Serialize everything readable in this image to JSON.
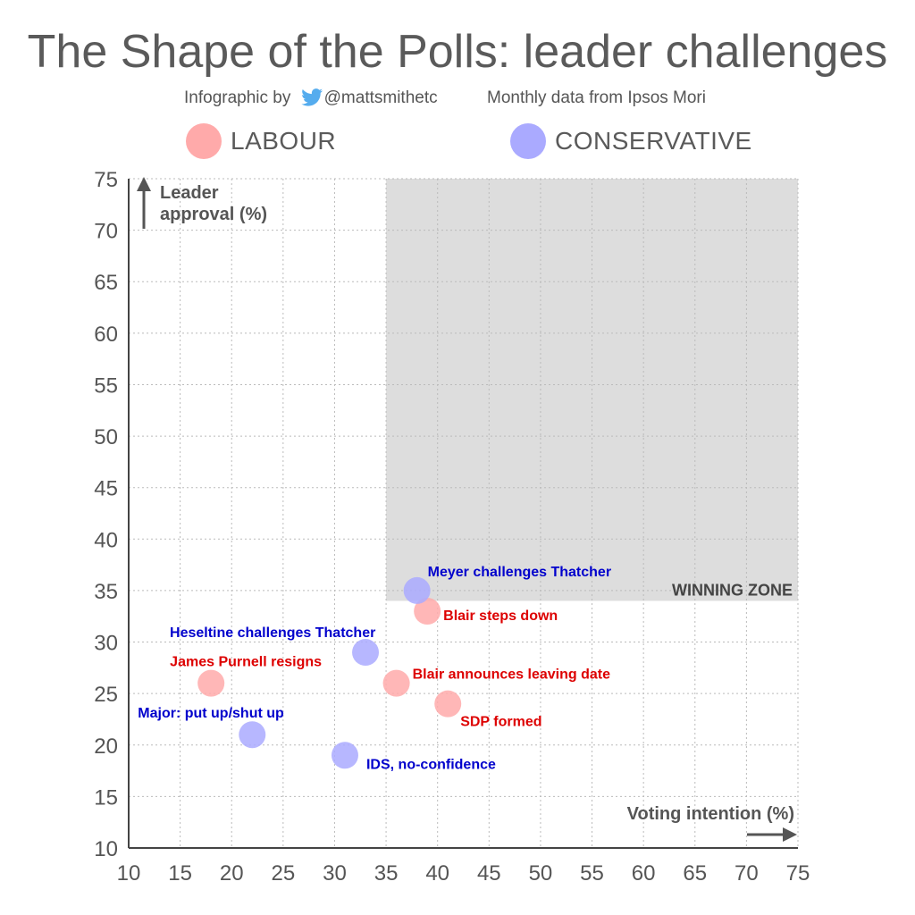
{
  "header": {
    "title": "The Shape of the Polls: leader challenges",
    "byline_prefix": "Infographic by",
    "twitter_handle": "@mattsmithetc",
    "source": "Monthly data from Ipsos Mori"
  },
  "legend": [
    {
      "label": "LABOUR",
      "color": "#ffaaaa"
    },
    {
      "label": "CONSERVATIVE",
      "color": "#aaaaff"
    }
  ],
  "chart_data": {
    "type": "scatter",
    "title": "The Shape of the Polls: leader challenges",
    "xlabel": "Voting intention (%)",
    "ylabel_lines": [
      "Leader",
      "approval (%)"
    ],
    "xlim": [
      10,
      75
    ],
    "ylim": [
      10,
      75
    ],
    "xticks": [
      10,
      15,
      20,
      25,
      30,
      35,
      40,
      45,
      50,
      55,
      60,
      65,
      70,
      75
    ],
    "yticks": [
      10,
      15,
      20,
      25,
      30,
      35,
      40,
      45,
      50,
      55,
      60,
      65,
      70,
      75
    ],
    "grid": true,
    "zone": {
      "label": "WINNING ZONE",
      "x": [
        35,
        75
      ],
      "y": [
        34,
        75
      ],
      "color": "#dddddd"
    },
    "series": [
      {
        "name": "LABOUR",
        "color": "#ffaaaa",
        "label_color": "#dd0000",
        "points": [
          {
            "x": 18,
            "y": 26,
            "label": "James Purnell resigns"
          },
          {
            "x": 36,
            "y": 26,
            "label": "Blair announces leaving date"
          },
          {
            "x": 39,
            "y": 33,
            "label": "Blair steps down"
          },
          {
            "x": 41,
            "y": 24,
            "label": "SDP formed"
          }
        ]
      },
      {
        "name": "CONSERVATIVE",
        "color": "#aaaaff",
        "label_color": "#0000cc",
        "points": [
          {
            "x": 22,
            "y": 21,
            "label": "Major: put up/shut up"
          },
          {
            "x": 31,
            "y": 19,
            "label": "IDS, no-confidence"
          },
          {
            "x": 33,
            "y": 29,
            "label": "Heseltine challenges Thatcher"
          },
          {
            "x": 38,
            "y": 35,
            "label": "Meyer challenges Thatcher"
          }
        ]
      }
    ]
  }
}
